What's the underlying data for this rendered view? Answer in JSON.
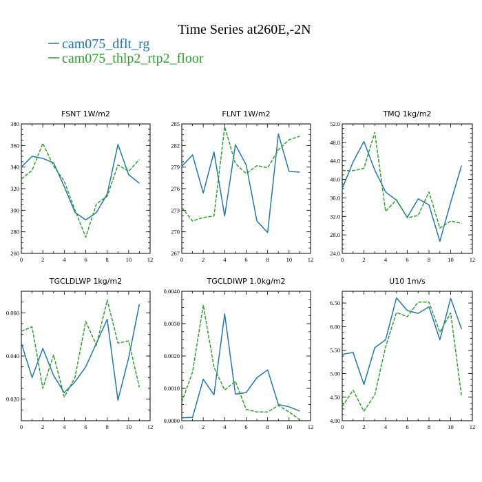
{
  "figure": {
    "title": "Time Series at260E,-2N",
    "legend": [
      {
        "label": "cam075_dflt_rg",
        "color": "#1f77b4",
        "dash": "solid"
      },
      {
        "label": "cam075_thlp2_rtp2_floor",
        "color": "#2ca02c",
        "dash": "dashed"
      }
    ]
  },
  "chart_data": [
    {
      "type": "line",
      "title": "FSNT  1W/m2",
      "x": [
        0,
        1,
        2,
        3,
        4,
        5,
        6,
        7,
        8,
        9,
        10,
        11
      ],
      "xlim": [
        0,
        12
      ],
      "xticks": [
        0,
        2,
        4,
        6,
        8,
        10,
        12
      ],
      "ylim": [
        260,
        380
      ],
      "yticks": [
        260,
        280,
        300,
        320,
        340,
        360,
        380
      ],
      "ytick_labels": [
        "260",
        "280",
        "300",
        "320",
        "340",
        "360",
        "380"
      ],
      "series": [
        {
          "name": "cam075_dflt_rg",
          "values": [
            340,
            350,
            348,
            344,
            322,
            298,
            291,
            298,
            315,
            361,
            333,
            325
          ]
        },
        {
          "name": "cam075_thlp2_rtp2_floor",
          "values": [
            329,
            337,
            362,
            341,
            327,
            300,
            275,
            306,
            313,
            342,
            336,
            347
          ]
        }
      ]
    },
    {
      "type": "line",
      "title": "FLNT  1W/m2",
      "x": [
        0,
        1,
        2,
        3,
        4,
        5,
        6,
        7,
        8,
        9,
        10,
        11
      ],
      "xlim": [
        0,
        12
      ],
      "xticks": [
        0,
        2,
        4,
        6,
        8,
        10,
        12
      ],
      "ylim": [
        267,
        285
      ],
      "yticks": [
        267,
        270,
        273,
        276,
        279,
        282,
        285
      ],
      "ytick_labels": [
        "267",
        "270",
        "273",
        "276",
        "279",
        "282",
        "285"
      ],
      "series": [
        {
          "name": "cam075_dflt_rg",
          "values": [
            279.1,
            280.7,
            275.4,
            281.1,
            272.2,
            282.1,
            279.3,
            271.5,
            269.9,
            283.6,
            278.4,
            278.3
          ]
        },
        {
          "name": "cam075_thlp2_rtp2_floor",
          "values": [
            273.4,
            271.5,
            272.0,
            272.2,
            284.6,
            279.5,
            278.1,
            279.2,
            278.9,
            281.4,
            282.8,
            283.3
          ]
        }
      ]
    },
    {
      "type": "line",
      "title": "TMQ  1kg/m2",
      "x": [
        0,
        1,
        2,
        3,
        4,
        5,
        6,
        7,
        8,
        9,
        10,
        11
      ],
      "xlim": [
        0,
        12
      ],
      "xticks": [
        0,
        2,
        4,
        6,
        8,
        10,
        12
      ],
      "ylim": [
        24,
        52
      ],
      "yticks": [
        24,
        28,
        32,
        36,
        40,
        44,
        48,
        52
      ],
      "ytick_labels": [
        "24.0",
        "28.0",
        "32.0",
        "36.0",
        "40.0",
        "44.0",
        "48.0",
        "52.0"
      ],
      "series": [
        {
          "name": "cam075_dflt_rg",
          "values": [
            38.0,
            43.8,
            48.2,
            42.0,
            37.3,
            35.5,
            31.8,
            35.8,
            34.5,
            26.6,
            35.0,
            43.0
          ]
        },
        {
          "name": "cam075_thlp2_rtp2_floor",
          "values": [
            41.9,
            41.9,
            42.4,
            50.2,
            33.1,
            35.6,
            31.7,
            32.2,
            37.3,
            29.5,
            31.0,
            30.5
          ]
        }
      ]
    },
    {
      "type": "line",
      "title": "TGCLDLWP  1kg/m2",
      "x": [
        0,
        1,
        2,
        3,
        4,
        5,
        6,
        7,
        8,
        9,
        10,
        11
      ],
      "xlim": [
        0,
        12
      ],
      "xticks": [
        0,
        2,
        4,
        6,
        8,
        10,
        12
      ],
      "ylim": [
        0.01,
        0.07
      ],
      "yticks": [
        0.02,
        0.04,
        0.06
      ],
      "ytick_labels": [
        "0.020",
        "0.040",
        "0.060"
      ],
      "series": [
        {
          "name": "cam075_dflt_rg",
          "values": [
            0.046,
            0.03,
            0.0435,
            0.031,
            0.023,
            0.028,
            0.035,
            0.046,
            0.057,
            0.0195,
            0.039,
            0.064
          ]
        },
        {
          "name": "cam075_thlp2_rtp2_floor",
          "values": [
            0.0515,
            0.0535,
            0.025,
            0.0405,
            0.021,
            0.03,
            0.056,
            0.045,
            0.066,
            0.046,
            0.047,
            0.0255
          ]
        }
      ]
    },
    {
      "type": "line",
      "title": "TGCLDIWP  1.0kg/m2",
      "x": [
        0,
        1,
        2,
        3,
        4,
        5,
        6,
        7,
        8,
        9,
        10,
        11
      ],
      "xlim": [
        0,
        12
      ],
      "xticks": [
        0,
        2,
        4,
        6,
        8,
        10,
        12
      ],
      "ylim": [
        0,
        0.004
      ],
      "yticks": [
        0,
        0.001,
        0.002,
        0.003,
        0.004
      ],
      "ytick_labels": [
        "0.0000",
        "0.0010",
        "0.0020",
        "0.0030",
        "0.0040"
      ],
      "series": [
        {
          "name": "cam075_dflt_rg",
          "values": [
            9e-05,
            0.0001,
            0.00128,
            0.0008,
            0.0033,
            0.00082,
            0.00087,
            0.00133,
            0.00157,
            0.0005,
            0.00043,
            0.0003
          ]
        },
        {
          "name": "cam075_thlp2_rtp2_floor",
          "values": [
            0.00057,
            0.0015,
            0.00357,
            0.00165,
            0.00095,
            0.00122,
            0.00035,
            0.00027,
            0.00027,
            0.00047,
            0.00027,
            3e-05
          ]
        }
      ]
    },
    {
      "type": "line",
      "title": "U10  1m/s",
      "x": [
        0,
        1,
        2,
        3,
        4,
        5,
        6,
        7,
        8,
        9,
        10,
        11
      ],
      "xlim": [
        0,
        12
      ],
      "xticks": [
        0,
        2,
        4,
        6,
        8,
        10,
        12
      ],
      "ylim": [
        4.0,
        6.75
      ],
      "yticks": [
        4.0,
        4.5,
        5.0,
        5.5,
        6.0,
        6.5
      ],
      "ytick_labels": [
        "4.00",
        "4.50",
        "5.00",
        "5.50",
        "6.00",
        "6.50"
      ],
      "series": [
        {
          "name": "cam075_dflt_rg",
          "values": [
            5.41,
            5.45,
            4.77,
            5.55,
            5.72,
            6.61,
            6.34,
            6.28,
            6.42,
            5.72,
            6.6,
            5.95
          ]
        },
        {
          "name": "cam075_thlp2_rtp2_floor",
          "values": [
            4.3,
            4.65,
            4.2,
            4.55,
            5.57,
            6.3,
            6.21,
            6.52,
            6.52,
            5.88,
            6.29,
            4.52
          ]
        }
      ]
    }
  ]
}
